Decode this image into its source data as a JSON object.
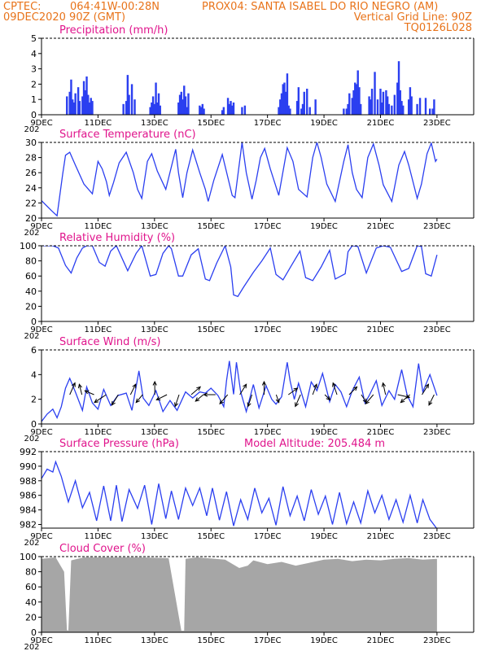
{
  "header": {
    "line1_left": "CPTEC:",
    "coords": "064:41W-00:28N",
    "station": "PROX04: SANTA ISABEL DO RIO NEGRO (AM)",
    "date": "09DEC2020 90Z (GMT)",
    "vgrid": "Vertical Grid Line: 90Z",
    "code": "TQ0126L028"
  },
  "colors": {
    "header": "#e8731a",
    "panel_title": "#e0148c",
    "line": "#2b3ff0",
    "bars": "#2b3ff0",
    "cloud": "#a6a6a6",
    "arrows": "#000000"
  },
  "chart_data": [
    {
      "type": "bar",
      "title": "Precipitation (mm/h)",
      "x_unit": "days since 09DEC 00Z (hourly)",
      "ylim": [
        0,
        5
      ],
      "yticks": [
        0,
        1,
        2,
        3,
        4,
        5
      ],
      "x": [
        0.9,
        1.0,
        1.05,
        1.1,
        1.15,
        1.2,
        1.3,
        1.35,
        1.45,
        1.5,
        1.55,
        1.6,
        1.65,
        1.7,
        1.75,
        1.8,
        2.9,
        3.0,
        3.05,
        3.1,
        3.2,
        3.3,
        3.85,
        3.9,
        3.95,
        4.0,
        4.05,
        4.1,
        4.15,
        4.2,
        4.85,
        4.9,
        4.95,
        5.0,
        5.05,
        5.1,
        5.15,
        5.2,
        5.6,
        5.65,
        5.7,
        5.75,
        6.4,
        6.45,
        6.6,
        6.65,
        6.7,
        6.75,
        6.8,
        7.1,
        7.2,
        8.4,
        8.45,
        8.5,
        8.55,
        8.6,
        8.65,
        8.7,
        8.75,
        8.8,
        9.05,
        9.1,
        9.2,
        9.25,
        9.3,
        9.4,
        9.5,
        9.7,
        10.7,
        10.8,
        10.85,
        10.9,
        11.0,
        11.05,
        11.1,
        11.15,
        11.2,
        11.25,
        11.3,
        11.6,
        11.65,
        11.7,
        11.8,
        11.9,
        12.0,
        12.05,
        12.1,
        12.2,
        12.25,
        12.3,
        12.4,
        12.5,
        12.6,
        12.65,
        12.7,
        12.75,
        12.8,
        13.0,
        13.05,
        13.1,
        13.3,
        13.4,
        13.6,
        13.75,
        13.85,
        13.9
      ],
      "values": [
        1.2,
        1.5,
        2.3,
        1.0,
        0.8,
        1.4,
        1.8,
        0.9,
        1.2,
        2.2,
        1.6,
        2.5,
        1.3,
        0.8,
        1.1,
        0.9,
        0.7,
        0.9,
        2.6,
        1.3,
        2.0,
        1.0,
        0.5,
        0.8,
        1.2,
        0.7,
        2.1,
        0.8,
        1.4,
        0.6,
        0.8,
        1.3,
        1.5,
        1.0,
        1.9,
        1.2,
        0.5,
        1.4,
        0.6,
        0.5,
        0.7,
        0.4,
        0.3,
        0.5,
        1.1,
        0.7,
        0.9,
        0.6,
        0.8,
        0.5,
        0.6,
        0.5,
        1.0,
        1.4,
        2.0,
        2.1,
        1.5,
        2.7,
        0.6,
        0.4,
        0.9,
        1.8,
        0.4,
        0.7,
        1.5,
        1.7,
        0.5,
        1.0,
        0.4,
        0.4,
        0.7,
        1.4,
        1.1,
        1.6,
        2.1,
        2.0,
        2.9,
        1.8,
        0.7,
        1.2,
        1.0,
        1.7,
        2.8,
        1.0,
        1.7,
        0.8,
        1.5,
        1.6,
        1.2,
        0.7,
        0.6,
        1.3,
        2.1,
        3.5,
        1.6,
        0.9,
        0.6,
        1.0,
        1.8,
        1.2,
        0.7,
        1.1,
        1.1,
        0.4,
        0.4,
        1.0
      ]
    },
    {
      "type": "line",
      "title": "Surface Temperature (nC)",
      "x_unit": "days since 09DEC 00Z",
      "ylim": [
        20,
        30
      ],
      "yticks": [
        20,
        22,
        24,
        26,
        28,
        30
      ],
      "x": [
        0.0,
        0.35,
        0.55,
        0.75,
        0.85,
        1.0,
        1.2,
        1.5,
        1.8,
        2.0,
        2.15,
        2.3,
        2.4,
        2.55,
        2.75,
        3.0,
        3.25,
        3.4,
        3.55,
        3.75,
        3.9,
        4.1,
        4.4,
        4.75,
        4.85,
        5.0,
        5.15,
        5.35,
        5.6,
        5.8,
        5.9,
        6.1,
        6.4,
        6.75,
        6.85,
        7.1,
        7.25,
        7.45,
        7.6,
        7.75,
        7.9,
        8.1,
        8.4,
        8.7,
        8.9,
        9.1,
        9.4,
        9.6,
        9.75,
        9.9,
        10.1,
        10.4,
        10.7,
        10.85,
        11.0,
        11.15,
        11.35,
        11.55,
        11.75,
        11.95,
        12.1,
        12.4,
        12.65,
        12.85,
        13.0,
        13.3,
        13.45,
        13.65,
        13.8,
        13.95,
        14.0
      ],
      "values": [
        22.3,
        21.0,
        20.3,
        25.8,
        28.3,
        28.7,
        27.0,
        24.5,
        23.2,
        27.5,
        26.5,
        24.8,
        23.0,
        24.7,
        27.3,
        28.7,
        26.0,
        23.8,
        22.6,
        27.5,
        28.5,
        26.2,
        23.8,
        29.1,
        26.0,
        22.7,
        26.0,
        29.0,
        26.0,
        23.8,
        22.2,
        25.0,
        28.4,
        23.0,
        22.7,
        30.0,
        26.0,
        22.5,
        25.0,
        28.0,
        29.2,
        26.5,
        23.0,
        29.3,
        27.5,
        23.8,
        22.8,
        28.0,
        30.0,
        28.0,
        24.5,
        22.2,
        27.5,
        29.7,
        26.0,
        23.8,
        22.7,
        28.0,
        29.8,
        27.0,
        24.4,
        22.2,
        27.0,
        28.8,
        27.0,
        22.6,
        24.5,
        28.5,
        29.9,
        27.5,
        27.8
      ]
    },
    {
      "type": "line",
      "title": "Relative Humidity (%)",
      "x_unit": "days since 09DEC 00Z",
      "ylim": [
        0,
        100
      ],
      "yticks": [
        0,
        20,
        40,
        60,
        80,
        100
      ],
      "x": [
        0.0,
        0.4,
        0.6,
        0.85,
        1.05,
        1.25,
        1.45,
        1.6,
        1.8,
        2.05,
        2.25,
        2.45,
        2.65,
        3.05,
        3.35,
        3.55,
        3.85,
        4.05,
        4.3,
        4.5,
        4.6,
        4.85,
        5.0,
        5.3,
        5.55,
        5.8,
        5.95,
        6.2,
        6.5,
        6.7,
        6.8,
        6.95,
        7.15,
        7.5,
        7.8,
        8.1,
        8.3,
        8.55,
        8.85,
        9.15,
        9.35,
        9.6,
        9.9,
        10.2,
        10.4,
        10.75,
        10.85,
        11.0,
        11.2,
        11.5,
        11.85,
        12.1,
        12.35,
        12.75,
        13.0,
        13.3,
        13.45,
        13.6,
        13.8,
        14.0
      ],
      "values": [
        100,
        100,
        97,
        74,
        64,
        84,
        97,
        100,
        100,
        78,
        73,
        93,
        100,
        67,
        90,
        100,
        60,
        62,
        90,
        100,
        96,
        60,
        60,
        88,
        96,
        56,
        54,
        77,
        100,
        72,
        35,
        33,
        45,
        65,
        80,
        97,
        62,
        55,
        74,
        93,
        58,
        54,
        72,
        94,
        56,
        63,
        92,
        100,
        99,
        64,
        97,
        100,
        98,
        66,
        70,
        100,
        99,
        63,
        60,
        88
      ]
    },
    {
      "type": "line",
      "title": "Surface Wind (m/s)",
      "x_unit": "days since 09DEC 00Z",
      "ylim": [
        0,
        6
      ],
      "yticks": [
        0,
        2,
        4,
        6
      ],
      "x": [
        0.0,
        0.2,
        0.4,
        0.55,
        0.7,
        0.85,
        1.0,
        1.2,
        1.45,
        1.6,
        1.8,
        2.0,
        2.2,
        2.45,
        2.7,
        3.0,
        3.2,
        3.45,
        3.6,
        3.8,
        4.05,
        4.3,
        4.55,
        4.8,
        5.1,
        5.35,
        5.6,
        5.8,
        6.0,
        6.25,
        6.45,
        6.55,
        6.65,
        6.8,
        6.9,
        7.05,
        7.25,
        7.5,
        7.7,
        7.95,
        8.15,
        8.3,
        8.5,
        8.7,
        8.8,
        8.95,
        9.1,
        9.35,
        9.55,
        9.75,
        9.95,
        10.2,
        10.4,
        10.6,
        10.8,
        11.0,
        11.25,
        11.45,
        11.6,
        11.85,
        12.05,
        12.3,
        12.5,
        12.75,
        12.95,
        13.15,
        13.35,
        13.5,
        13.75,
        14.0
      ],
      "values": [
        0.2,
        0.8,
        1.2,
        0.5,
        1.4,
        2.9,
        3.7,
        2.6,
        1.1,
        3.0,
        1.7,
        1.2,
        2.8,
        1.5,
        2.3,
        2.5,
        1.1,
        4.3,
        2.1,
        1.5,
        2.7,
        1.0,
        1.9,
        1.1,
        2.6,
        2.1,
        2.6,
        2.5,
        2.9,
        2.3,
        1.4,
        3.5,
        5.1,
        2.4,
        5.0,
        2.6,
        1.0,
        3.2,
        1.3,
        3.1,
        2.0,
        1.6,
        2.2,
        5.0,
        3.5,
        2.0,
        3.3,
        1.4,
        3.4,
        2.7,
        4.1,
        1.8,
        3.2,
        2.6,
        1.4,
        2.7,
        3.8,
        1.7,
        2.3,
        3.5,
        1.5,
        2.7,
        2.0,
        4.4,
        2.3,
        1.4,
        4.9,
        2.6,
        4.0,
        2.3
      ],
      "arrows_u": [
        0.4,
        -0.2,
        -0.7,
        -0.9,
        -0.5,
        0.4,
        -0.5,
        0.0,
        -0.8,
        -0.3,
        0.7,
        -0.6,
        -0.9,
        -0.6,
        0.5,
        -0.3,
        0.0,
        0.2,
        0.7,
        -0.4,
        0.3,
        0.4,
        -0.3,
        0.6,
        0.4,
        -0.6,
        -0.2,
        0.9,
        -0.7,
        0.5,
        -0.4
      ],
      "arrows_v": [
        0.9,
        0.8,
        0.3,
        -0.6,
        -0.8,
        0.8,
        -0.6,
        1.0,
        -0.4,
        -0.9,
        0.6,
        -0.5,
        0.0,
        -0.7,
        0.8,
        -0.9,
        1.0,
        -0.6,
        0.5,
        -0.9,
        0.8,
        -0.4,
        0.9,
        0.6,
        -0.6,
        -0.7,
        0.9,
        -0.2,
        -0.6,
        0.8,
        -0.8
      ]
    },
    {
      "type": "line",
      "title": "Surface Pressure (hPa)",
      "annotation": "Model Altitude: 205.484  m",
      "x_unit": "days since 09DEC 00Z",
      "ylim": [
        981.5,
        992
      ],
      "yticks": [
        982,
        984,
        986,
        988,
        990,
        992
      ],
      "x": [
        0.0,
        0.2,
        0.4,
        0.5,
        0.7,
        0.95,
        1.2,
        1.45,
        1.7,
        1.95,
        2.2,
        2.45,
        2.65,
        2.85,
        3.1,
        3.4,
        3.65,
        3.9,
        4.15,
        4.4,
        4.6,
        4.85,
        5.1,
        5.35,
        5.6,
        5.85,
        6.05,
        6.3,
        6.55,
        6.8,
        7.05,
        7.3,
        7.55,
        7.8,
        8.05,
        8.3,
        8.55,
        8.8,
        9.05,
        9.3,
        9.55,
        9.8,
        10.05,
        10.3,
        10.55,
        10.8,
        11.05,
        11.3,
        11.55,
        11.8,
        12.05,
        12.3,
        12.55,
        12.8,
        13.05,
        13.3,
        13.5,
        13.75,
        14.0
      ],
      "values": [
        988.3,
        989.6,
        989.2,
        990.6,
        988.6,
        985.1,
        988.0,
        984.3,
        986.4,
        982.5,
        987.3,
        982.5,
        987.4,
        982.4,
        986.8,
        984.2,
        987.4,
        982.0,
        987.6,
        982.8,
        986.6,
        982.7,
        987.0,
        984.6,
        987.0,
        983.2,
        987.0,
        982.6,
        986.5,
        981.8,
        985.4,
        982.7,
        987.0,
        983.6,
        985.6,
        981.9,
        987.2,
        983.2,
        985.9,
        982.5,
        986.8,
        983.4,
        985.9,
        982.0,
        986.4,
        982.1,
        985.1,
        982.2,
        986.6,
        983.6,
        986.0,
        982.7,
        985.4,
        982.3,
        986.0,
        982.2,
        985.4,
        982.7,
        981.4
      ]
    },
    {
      "type": "area",
      "title": "Cloud Cover (%)",
      "x_unit": "days since 09DEC 00Z",
      "ylim": [
        0,
        100
      ],
      "yticks": [
        0,
        20,
        40,
        60,
        80,
        100
      ],
      "x": [
        0.0,
        0.5,
        0.8,
        0.9,
        0.95,
        1.05,
        1.5,
        2.5,
        3.5,
        4.5,
        4.95,
        5.05,
        5.1,
        5.5,
        6.5,
        7.0,
        7.3,
        7.5,
        8.0,
        8.5,
        9.0,
        9.5,
        10.0,
        10.5,
        11.0,
        11.5,
        12.0,
        12.5,
        13.0,
        13.5,
        14.0
      ],
      "values": [
        97,
        99,
        80,
        3,
        2,
        95,
        99,
        99,
        99,
        98,
        2,
        2,
        97,
        99,
        96,
        85,
        88,
        95,
        90,
        93,
        88,
        92,
        96,
        97,
        94,
        96,
        95,
        97,
        98,
        96,
        97
      ]
    }
  ],
  "x_axis": {
    "labels": [
      "9DEC",
      "11DEC",
      "13DEC",
      "15DEC",
      "17DEC",
      "19DEC",
      "21DEC",
      "23DEC"
    ],
    "label_days": [
      0,
      2,
      4,
      6,
      8,
      10,
      12,
      14
    ],
    "year_fragment": "202"
  }
}
